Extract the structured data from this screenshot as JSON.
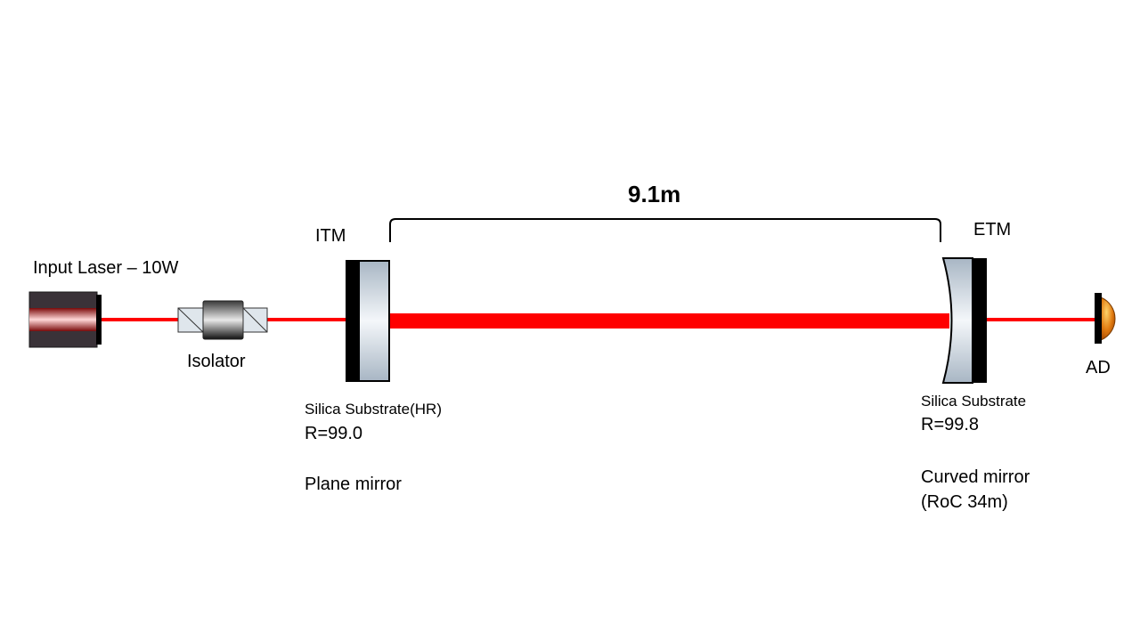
{
  "laser": {
    "label": "Input Laser – 10W"
  },
  "isolator": {
    "label": "Isolator"
  },
  "itm": {
    "label": "ITM",
    "substrate": "Silica Substrate(HR)",
    "reflectivity": "R=99.0",
    "type": "Plane mirror"
  },
  "etm": {
    "label": "ETM",
    "substrate": "Silica Substrate",
    "reflectivity": "R=99.8",
    "type_line1": "Curved mirror",
    "type_line2": "(RoC 34m)"
  },
  "detector": {
    "label": "AD"
  },
  "cavity": {
    "length_label": "9.1m"
  },
  "colors": {
    "beam": "#ff0000",
    "laser_body": "#3a3238",
    "glass": "#c9d3dc",
    "detector": "#e07a10"
  }
}
